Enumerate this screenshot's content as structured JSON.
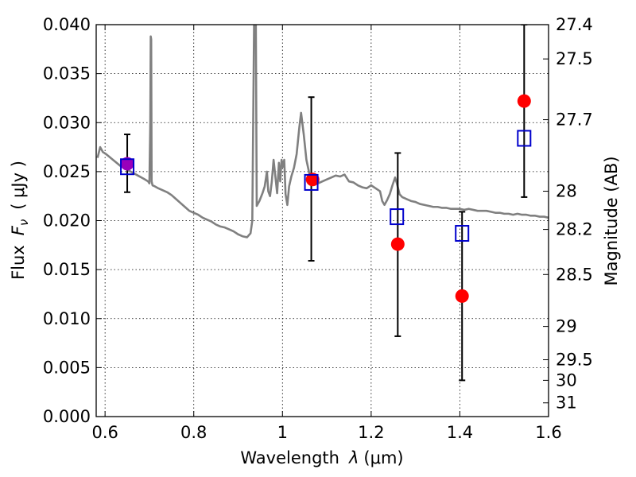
{
  "chart_data": {
    "type": "scatter",
    "xlabel_prefix": "Wavelength",
    "xlabel_symbol": "λ",
    "xlabel_unit": "(μm)",
    "ylabel_prefix": "Flux",
    "ylabel_symbol": "F",
    "ylabel_subscript": "ν",
    "ylabel_unit": "( μJy )",
    "ylabel_right": "Magnitude (AB)",
    "xlim": [
      0.58,
      1.6
    ],
    "ylim": [
      0.0,
      0.04
    ],
    "grid": true,
    "x_ticks": [
      {
        "value": 0.6,
        "label": "0.6"
      },
      {
        "value": 0.8,
        "label": "0.8"
      },
      {
        "value": 1.0,
        "label": "1"
      },
      {
        "value": 1.2,
        "label": "1.2"
      },
      {
        "value": 1.4,
        "label": "1.4"
      },
      {
        "value": 1.6,
        "label": "1.6"
      }
    ],
    "y_ticks": [
      {
        "value": 0.0,
        "label": "0.000"
      },
      {
        "value": 0.005,
        "label": "0.005"
      },
      {
        "value": 0.01,
        "label": "0.010"
      },
      {
        "value": 0.015,
        "label": "0.015"
      },
      {
        "value": 0.02,
        "label": "0.020"
      },
      {
        "value": 0.025,
        "label": "0.025"
      },
      {
        "value": 0.03,
        "label": "0.030"
      },
      {
        "value": 0.035,
        "label": "0.035"
      },
      {
        "value": 0.04,
        "label": "0.040"
      }
    ],
    "right_ticks": [
      {
        "flux": 0.04,
        "label": "27.4"
      },
      {
        "flux": 0.0365,
        "label": "27.5"
      },
      {
        "flux": 0.0303,
        "label": "27.7"
      },
      {
        "flux": 0.023,
        "label": "28"
      },
      {
        "flux": 0.0191,
        "label": "28.2"
      },
      {
        "flux": 0.0145,
        "label": "28.5"
      },
      {
        "flux": 0.0092,
        "label": "29"
      },
      {
        "flux": 0.0058,
        "label": "29.5"
      },
      {
        "flux": 0.0037,
        "label": "30"
      },
      {
        "flux": 0.0014,
        "label": "31"
      }
    ],
    "series": [
      {
        "kind": "line",
        "color": "#808080",
        "points": [
          [
            0.583,
            0.0264
          ],
          [
            0.589,
            0.0275
          ],
          [
            0.595,
            0.027
          ],
          [
            0.602,
            0.0268
          ],
          [
            0.61,
            0.0265
          ],
          [
            0.618,
            0.0262
          ],
          [
            0.626,
            0.0259
          ],
          [
            0.634,
            0.0256
          ],
          [
            0.642,
            0.0254
          ],
          [
            0.65,
            0.0252
          ],
          [
            0.658,
            0.025
          ],
          [
            0.666,
            0.0248
          ],
          [
            0.674,
            0.0246
          ],
          [
            0.682,
            0.0244
          ],
          [
            0.69,
            0.0242
          ],
          [
            0.697,
            0.024
          ],
          [
            0.7,
            0.0238
          ],
          [
            0.702,
            0.03
          ],
          [
            0.703,
            0.0388
          ],
          [
            0.704,
            0.0385
          ],
          [
            0.705,
            0.024
          ],
          [
            0.707,
            0.0236
          ],
          [
            0.712,
            0.0235
          ],
          [
            0.72,
            0.0233
          ],
          [
            0.73,
            0.0231
          ],
          [
            0.74,
            0.0229
          ],
          [
            0.75,
            0.0226
          ],
          [
            0.76,
            0.0222
          ],
          [
            0.77,
            0.0218
          ],
          [
            0.78,
            0.0214
          ],
          [
            0.79,
            0.021
          ],
          [
            0.8,
            0.0208
          ],
          [
            0.81,
            0.0206
          ],
          [
            0.82,
            0.0203
          ],
          [
            0.83,
            0.0201
          ],
          [
            0.84,
            0.0199
          ],
          [
            0.85,
            0.0196
          ],
          [
            0.86,
            0.0194
          ],
          [
            0.87,
            0.0193
          ],
          [
            0.88,
            0.0191
          ],
          [
            0.89,
            0.0189
          ],
          [
            0.9,
            0.0186
          ],
          [
            0.91,
            0.0184
          ],
          [
            0.92,
            0.0183
          ],
          [
            0.928,
            0.0187
          ],
          [
            0.932,
            0.02
          ],
          [
            0.936,
            0.04
          ],
          [
            0.94,
            0.04
          ],
          [
            0.942,
            0.0215
          ],
          [
            0.948,
            0.022
          ],
          [
            0.955,
            0.0228
          ],
          [
            0.96,
            0.0235
          ],
          [
            0.965,
            0.025
          ],
          [
            0.968,
            0.023
          ],
          [
            0.972,
            0.0225
          ],
          [
            0.976,
            0.024
          ],
          [
            0.98,
            0.0262
          ],
          [
            0.984,
            0.0245
          ],
          [
            0.988,
            0.0228
          ],
          [
            0.992,
            0.0259
          ],
          [
            0.995,
            0.024
          ],
          [
            0.998,
            0.0262
          ],
          [
            1.001,
            0.0255
          ],
          [
            1.004,
            0.0262
          ],
          [
            1.007,
            0.0227
          ],
          [
            1.011,
            0.0216
          ],
          [
            1.015,
            0.0235
          ],
          [
            1.02,
            0.0245
          ],
          [
            1.026,
            0.0254
          ],
          [
            1.032,
            0.0268
          ],
          [
            1.038,
            0.0295
          ],
          [
            1.042,
            0.031
          ],
          [
            1.048,
            0.0288
          ],
          [
            1.054,
            0.0262
          ],
          [
            1.062,
            0.0245
          ],
          [
            1.07,
            0.024
          ],
          [
            1.08,
            0.0238
          ],
          [
            1.09,
            0.024
          ],
          [
            1.1,
            0.0242
          ],
          [
            1.11,
            0.0244
          ],
          [
            1.12,
            0.0246
          ],
          [
            1.13,
            0.0245
          ],
          [
            1.14,
            0.0247
          ],
          [
            1.15,
            0.024
          ],
          [
            1.16,
            0.0239
          ],
          [
            1.17,
            0.0236
          ],
          [
            1.18,
            0.0234
          ],
          [
            1.19,
            0.0233
          ],
          [
            1.2,
            0.0236
          ],
          [
            1.21,
            0.0233
          ],
          [
            1.22,
            0.023
          ],
          [
            1.225,
            0.022
          ],
          [
            1.23,
            0.0216
          ],
          [
            1.236,
            0.0221
          ],
          [
            1.242,
            0.0227
          ],
          [
            1.248,
            0.0236
          ],
          [
            1.254,
            0.0244
          ],
          [
            1.258,
            0.0238
          ],
          [
            1.264,
            0.0227
          ],
          [
            1.27,
            0.0224
          ],
          [
            1.28,
            0.0222
          ],
          [
            1.29,
            0.022
          ],
          [
            1.3,
            0.0219
          ],
          [
            1.31,
            0.0217
          ],
          [
            1.32,
            0.0216
          ],
          [
            1.33,
            0.0215
          ],
          [
            1.34,
            0.0214
          ],
          [
            1.35,
            0.0214
          ],
          [
            1.36,
            0.0213
          ],
          [
            1.37,
            0.0213
          ],
          [
            1.38,
            0.0212
          ],
          [
            1.39,
            0.0212
          ],
          [
            1.4,
            0.0212
          ],
          [
            1.41,
            0.0211
          ],
          [
            1.42,
            0.0212
          ],
          [
            1.43,
            0.0211
          ],
          [
            1.44,
            0.021
          ],
          [
            1.45,
            0.021
          ],
          [
            1.46,
            0.021
          ],
          [
            1.47,
            0.0209
          ],
          [
            1.48,
            0.0208
          ],
          [
            1.49,
            0.0208
          ],
          [
            1.5,
            0.0207
          ],
          [
            1.51,
            0.0207
          ],
          [
            1.52,
            0.0206
          ],
          [
            1.53,
            0.0207
          ],
          [
            1.54,
            0.0206
          ],
          [
            1.55,
            0.0206
          ],
          [
            1.56,
            0.0205
          ],
          [
            1.57,
            0.0205
          ],
          [
            1.58,
            0.0204
          ],
          [
            1.59,
            0.0204
          ],
          [
            1.6,
            0.0203
          ]
        ]
      },
      {
        "kind": "errorbar",
        "color": "#000000",
        "points": [
          {
            "x": 0.65,
            "low": 0.0229,
            "high": 0.0288
          },
          {
            "x": 1.065,
            "low": 0.0159,
            "high": 0.0326
          },
          {
            "x": 1.26,
            "low": 0.0082,
            "high": 0.0269
          },
          {
            "x": 1.405,
            "low": 0.0037,
            "high": 0.0209
          },
          {
            "x": 1.545,
            "low": 0.0224,
            "high": 0.04
          }
        ]
      },
      {
        "kind": "marker-circle",
        "color": "#ff0000",
        "points": [
          [
            0.65,
            0.0258
          ],
          [
            1.068,
            0.0242
          ],
          [
            1.26,
            0.0176
          ],
          [
            1.405,
            0.0123
          ],
          [
            1.545,
            0.0322
          ]
        ]
      },
      {
        "kind": "marker-square",
        "color": "#0000cc",
        "points": [
          [
            0.65,
            0.0255
          ],
          [
            1.065,
            0.0239
          ],
          [
            1.258,
            0.0204
          ],
          [
            1.405,
            0.0187
          ],
          [
            1.545,
            0.0284
          ]
        ]
      }
    ],
    "overlap_color": "#9900bb"
  }
}
